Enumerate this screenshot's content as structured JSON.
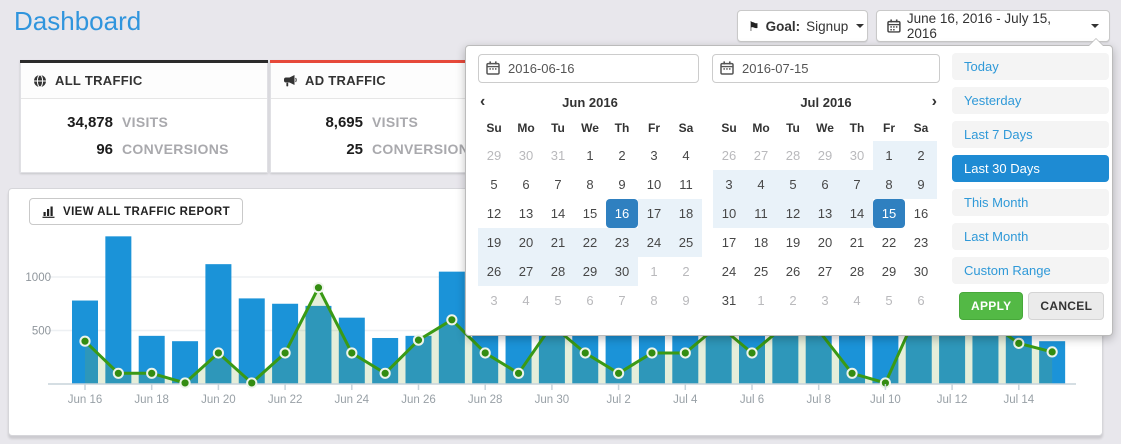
{
  "header": {
    "title": "Dashboard",
    "goal_label": "Goal:",
    "goal_value": "Signup",
    "date_range_label": "June 16, 2016 - July 15, 2016"
  },
  "cards": [
    {
      "title": "ALL TRAFFIC",
      "icon": "globe-icon",
      "accent_color": "#2b2b2b",
      "rows": [
        {
          "value": "34,878",
          "label": "VISITS"
        },
        {
          "value": "96",
          "label": "CONVERSIONS"
        }
      ]
    },
    {
      "title": "AD TRAFFIC",
      "icon": "megaphone-icon",
      "accent_color": "#e6493a",
      "rows": [
        {
          "value": "8,695",
          "label": "VISITS"
        },
        {
          "value": "25",
          "label": "CONVERSIONS"
        }
      ]
    }
  ],
  "report_button": {
    "label": "VIEW ALL TRAFFIC REPORT",
    "icon": "bar-chart-icon"
  },
  "datepicker": {
    "start_input": "2016-06-16",
    "end_input": "2016-07-15",
    "day_names": [
      "Su",
      "Mo",
      "Tu",
      "We",
      "Th",
      "Fr",
      "Sa"
    ],
    "months": [
      {
        "title": "Jun 2016",
        "has_prev": true,
        "has_next": false,
        "weeks": [
          [
            "29-",
            "30-",
            "31-",
            "1",
            "2",
            "3",
            "4"
          ],
          [
            "5",
            "6",
            "7",
            "8",
            "9",
            "10",
            "11"
          ],
          [
            "12",
            "13",
            "14",
            "15",
            "16S",
            "17r",
            "18r"
          ],
          [
            "19r",
            "20r",
            "21r",
            "22r",
            "23r",
            "24r",
            "25r"
          ],
          [
            "26r",
            "27r",
            "28r",
            "29r",
            "30r",
            "1-",
            "2-"
          ],
          [
            "3-",
            "4-",
            "5-",
            "6-",
            "7-",
            "8-",
            "9-"
          ]
        ]
      },
      {
        "title": "Jul 2016",
        "has_prev": false,
        "has_next": true,
        "weeks": [
          [
            "26-",
            "27-",
            "28-",
            "29-",
            "30-",
            "1r",
            "2r"
          ],
          [
            "3r",
            "4r",
            "5r",
            "6r",
            "7r",
            "8r",
            "9r"
          ],
          [
            "10r",
            "11r",
            "12r",
            "13r",
            "14r",
            "15S",
            "16"
          ],
          [
            "17",
            "18",
            "19",
            "20",
            "21",
            "22",
            "23"
          ],
          [
            "24",
            "25",
            "26",
            "27",
            "28",
            "29",
            "30"
          ],
          [
            "31",
            "1-",
            "2-",
            "3-",
            "4-",
            "5-",
            "6-"
          ]
        ]
      }
    ],
    "ranges": [
      "Today",
      "Yesterday",
      "Last 7 Days",
      "Last 30 Days",
      "This Month",
      "Last Month",
      "Custom Range"
    ],
    "selected_range": "Last 30 Days",
    "apply_label": "APPLY",
    "cancel_label": "CANCEL"
  },
  "chart_data": {
    "type": "bar",
    "title": "",
    "x": [
      "Jun 16",
      "Jun 17",
      "Jun 18",
      "Jun 19",
      "Jun 20",
      "Jun 21",
      "Jun 22",
      "Jun 23",
      "Jun 24",
      "Jun 25",
      "Jun 26",
      "Jun 27",
      "Jun 28",
      "Jun 29",
      "Jun 30",
      "Jul 1",
      "Jul 2",
      "Jul 3",
      "Jul 4",
      "Jul 5",
      "Jul 6",
      "Jul 7",
      "Jul 8",
      "Jul 9",
      "Jul 10",
      "Jul 11",
      "Jul 12",
      "Jul 13",
      "Jul 14",
      "Jul 15"
    ],
    "x_tick_every": 2,
    "series": [
      {
        "name": "visits",
        "type": "bar",
        "color": "#1b93d8",
        "values": [
          780,
          1380,
          450,
          400,
          1120,
          800,
          750,
          730,
          620,
          430,
          450,
          1050,
          900,
          700,
          850,
          950,
          800,
          900,
          750,
          1000,
          850,
          700,
          900,
          700,
          600,
          800,
          900,
          1000,
          780,
          400
        ]
      },
      {
        "name": "conversions",
        "type": "line",
        "color": "#3a9a15",
        "values": [
          400,
          100,
          100,
          10,
          290,
          10,
          290,
          900,
          290,
          100,
          410,
          600,
          290,
          100,
          550,
          290,
          100,
          290,
          290,
          550,
          290,
          550,
          500,
          100,
          10,
          700,
          800,
          600,
          380,
          300
        ]
      }
    ],
    "y_ticks": [
      500,
      1000
    ],
    "ylim": [
      0,
      1450
    ],
    "grid": true,
    "legend": false
  },
  "colors": {
    "page_bg": "#e8e7ec",
    "title_blue": "#3095dd",
    "bar_blue": "#1b93d8",
    "line_green": "#3a9a15",
    "area_green": "rgba(125,170,70,0.20)",
    "range_selected_bg": "#1e8bd3",
    "day_selected_bg": "#2f80c0",
    "day_range_bg": "#e9f2f9",
    "apply_green": "#53b945",
    "ad_accent_red": "#e6493a",
    "all_accent_dark": "#2b2b2b"
  }
}
